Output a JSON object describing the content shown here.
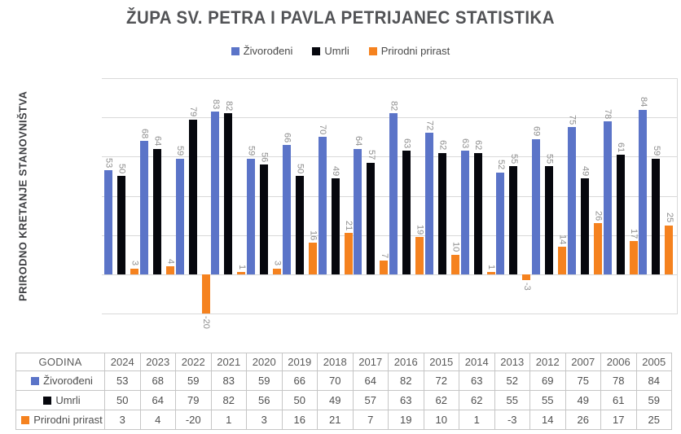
{
  "chart_data": {
    "type": "bar",
    "title": "ŽUPA SV. PETRA I PAVLA PETRIJANEC STATISTIKA",
    "ylabel": "PRIRODNO KRETANJE STANOVNIŠTVA",
    "xlabel": "",
    "ylim": [
      -20,
      100
    ],
    "gridlines": [
      100,
      80,
      60,
      40,
      20,
      0,
      -20
    ],
    "grid": "horizontal",
    "legend_position": "top",
    "value_label_rotation": "90-clockwise",
    "categories": [
      "2024",
      "2023",
      "2022",
      "2021",
      "2020",
      "2019",
      "2018",
      "2017",
      "2016",
      "2015",
      "2014",
      "2013",
      "2012",
      "2007",
      "2006",
      "2005"
    ],
    "series": [
      {
        "name": "Živorođeni",
        "color": "#5b74c8",
        "values": [
          53,
          68,
          59,
          83,
          59,
          66,
          70,
          64,
          82,
          72,
          63,
          52,
          69,
          75,
          78,
          84
        ]
      },
      {
        "name": "Umrli",
        "color": "#06070d",
        "values": [
          50,
          64,
          79,
          82,
          56,
          50,
          49,
          57,
          63,
          62,
          62,
          55,
          55,
          49,
          61,
          59
        ]
      },
      {
        "name": "Prirodni prirast",
        "color": "#f5821f",
        "values": [
          3,
          4,
          -20,
          1,
          3,
          16,
          21,
          7,
          19,
          10,
          1,
          -3,
          14,
          26,
          17,
          25
        ]
      }
    ]
  },
  "table": {
    "header_label": "GODINA"
  },
  "colors": {
    "grid": "#d9d9d9",
    "value_label": "#8e8e8e",
    "title_text": "#525356",
    "table_border": "#c6c6c6"
  }
}
